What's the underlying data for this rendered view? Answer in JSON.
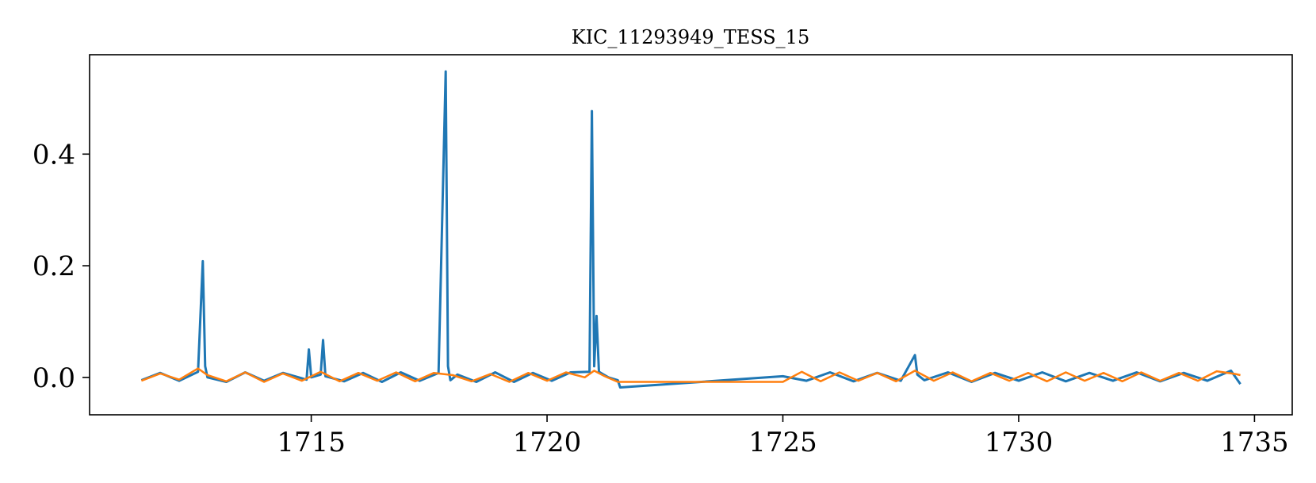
{
  "chart_data": {
    "type": "line",
    "title": "KIC_11293949_TESS_15",
    "xlabel": "",
    "ylabel": "",
    "xlim": [
      1710.3,
      1735.8
    ],
    "ylim": [
      -0.067,
      0.578
    ],
    "grid": false,
    "legend": "none",
    "x_ticks": [
      1715,
      1720,
      1725,
      1730,
      1735
    ],
    "x_tick_labels": [
      "1715",
      "1720",
      "1725",
      "1730",
      "1735"
    ],
    "y_ticks": [
      0.0,
      0.2,
      0.4
    ],
    "y_tick_labels": [
      "0.0",
      "0.2",
      "0.4"
    ],
    "series": [
      {
        "color": "#1f77b4",
        "x": [
          1711.4,
          1711.8,
          1712.2,
          1712.6,
          1712.7,
          1712.75,
          1712.8,
          1713.2,
          1713.6,
          1714.0,
          1714.4,
          1714.9,
          1714.95,
          1715.0,
          1715.2,
          1715.25,
          1715.3,
          1715.7,
          1716.1,
          1716.5,
          1716.9,
          1717.3,
          1717.7,
          1717.85,
          1717.9,
          1717.95,
          1718.1,
          1718.5,
          1718.9,
          1719.3,
          1719.7,
          1720.1,
          1720.5,
          1720.9,
          1720.95,
          1721.0,
          1721.05,
          1721.1,
          1721.3,
          1721.5,
          1721.55,
          1725.0,
          1725.5,
          1726.0,
          1726.5,
          1727.0,
          1727.5,
          1727.8,
          1727.85,
          1728.0,
          1728.5,
          1729.0,
          1729.5,
          1730.0,
          1730.5,
          1731.0,
          1731.5,
          1732.0,
          1732.5,
          1733.0,
          1733.5,
          1734.0,
          1734.5,
          1734.7
        ],
        "y": [
          -0.005,
          0.008,
          -0.006,
          0.01,
          0.208,
          0.02,
          0.0,
          -0.008,
          0.009,
          -0.006,
          0.008,
          -0.004,
          0.05,
          0.0,
          0.005,
          0.067,
          0.002,
          -0.007,
          0.008,
          -0.008,
          0.009,
          -0.006,
          0.008,
          0.548,
          0.02,
          -0.005,
          0.005,
          -0.008,
          0.009,
          -0.008,
          0.008,
          -0.006,
          0.009,
          0.01,
          0.477,
          0.02,
          0.11,
          0.01,
          0.0,
          -0.005,
          -0.018,
          0.002,
          -0.006,
          0.009,
          -0.007,
          0.008,
          -0.006,
          0.04,
          0.005,
          -0.005,
          0.009,
          -0.008,
          0.008,
          -0.006,
          0.009,
          -0.007,
          0.008,
          -0.006,
          0.009,
          -0.007,
          0.008,
          -0.006,
          0.012,
          -0.012
        ]
      },
      {
        "color": "#ff7f0e",
        "x": [
          1711.4,
          1711.8,
          1712.2,
          1712.6,
          1712.8,
          1713.2,
          1713.6,
          1714.0,
          1714.4,
          1714.8,
          1715.2,
          1715.6,
          1716.0,
          1716.4,
          1716.8,
          1717.2,
          1717.6,
          1718.0,
          1718.4,
          1718.8,
          1719.2,
          1719.6,
          1720.0,
          1720.4,
          1720.8,
          1721.0,
          1721.2,
          1721.5,
          1725.0,
          1725.4,
          1725.8,
          1726.2,
          1726.6,
          1727.0,
          1727.4,
          1727.8,
          1728.2,
          1728.6,
          1729.0,
          1729.4,
          1729.8,
          1730.2,
          1730.6,
          1731.0,
          1731.4,
          1731.8,
          1732.2,
          1732.6,
          1733.0,
          1733.4,
          1733.8,
          1734.2,
          1734.6,
          1734.7
        ],
        "y": [
          -0.006,
          0.007,
          -0.004,
          0.016,
          0.004,
          -0.007,
          0.009,
          -0.008,
          0.007,
          -0.006,
          0.01,
          -0.007,
          0.008,
          -0.006,
          0.009,
          -0.007,
          0.008,
          0.004,
          -0.007,
          0.006,
          -0.008,
          0.008,
          -0.006,
          0.009,
          0.0,
          0.012,
          0.003,
          -0.008,
          -0.008,
          0.01,
          -0.007,
          0.009,
          -0.006,
          0.008,
          -0.007,
          0.012,
          -0.006,
          0.009,
          -0.007,
          0.008,
          -0.006,
          0.008,
          -0.007,
          0.009,
          -0.006,
          0.008,
          -0.007,
          0.009,
          -0.006,
          0.008,
          -0.006,
          0.011,
          0.006,
          0.004
        ]
      }
    ]
  }
}
